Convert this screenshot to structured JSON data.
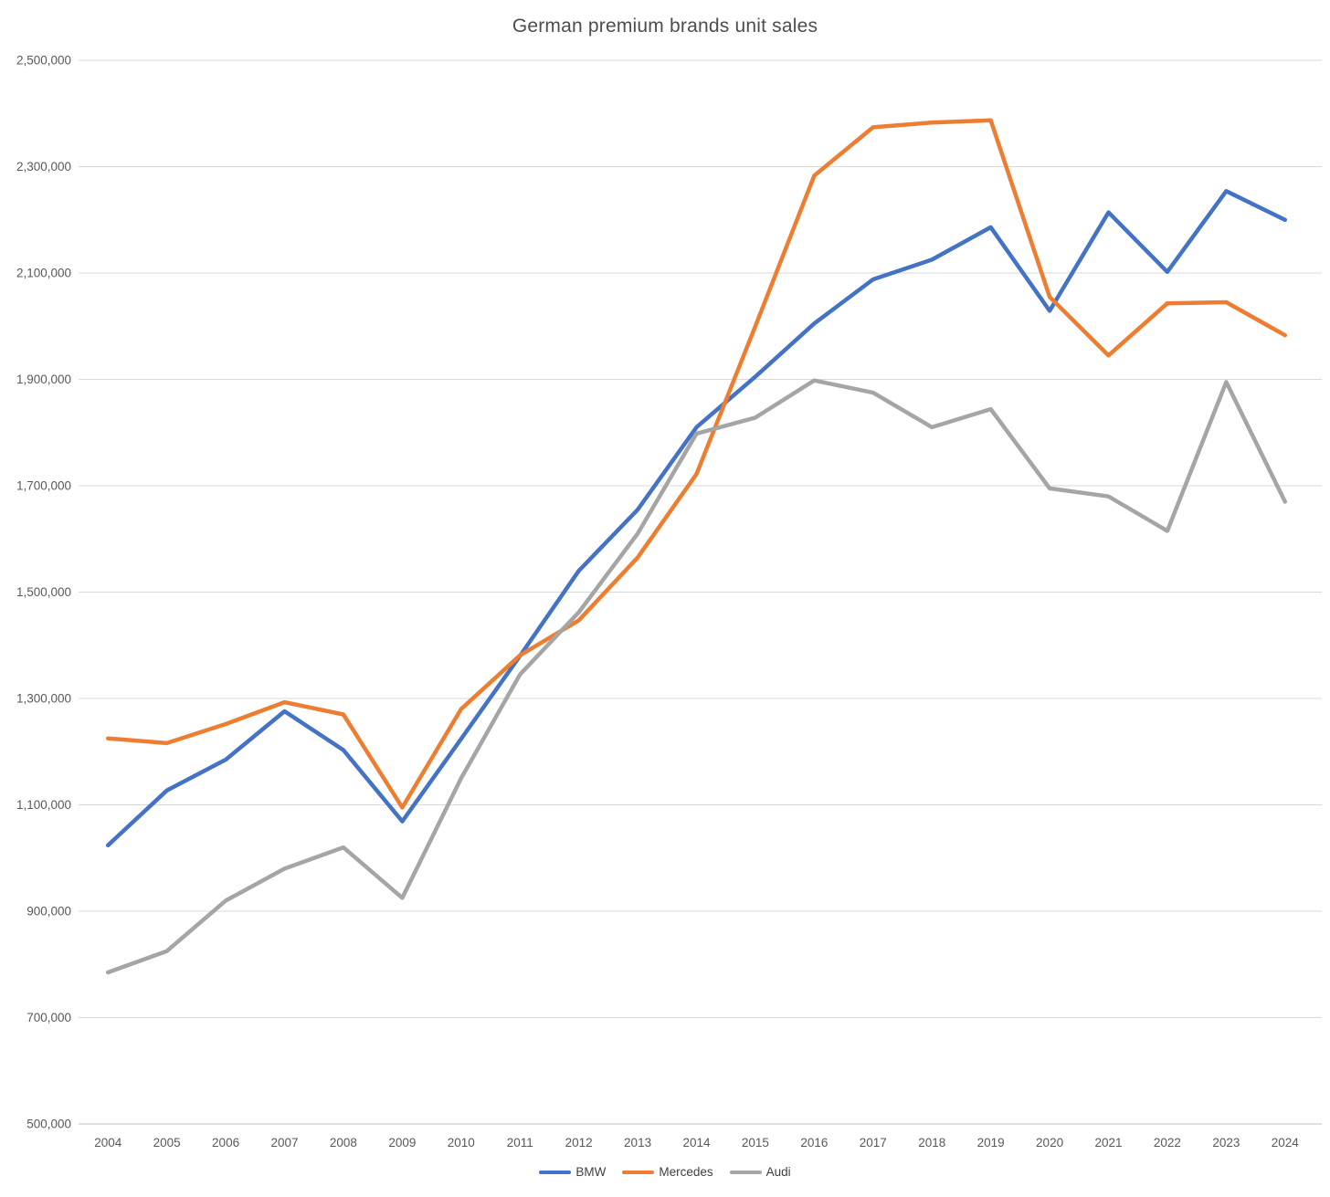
{
  "chart_data": {
    "type": "line",
    "title": "German premium brands unit sales",
    "categories": [
      "2004",
      "2005",
      "2006",
      "2007",
      "2008",
      "2009",
      "2010",
      "2011",
      "2012",
      "2013",
      "2014",
      "2015",
      "2016",
      "2017",
      "2018",
      "2019",
      "2020",
      "2021",
      "2022",
      "2023",
      "2024"
    ],
    "series": [
      {
        "name": "BMW",
        "color": "#4472C4",
        "values": [
          1024000,
          1127000,
          1185000,
          1276000,
          1203000,
          1069000,
          1224000,
          1380000,
          1540000,
          1655000,
          1810000,
          1905000,
          2005000,
          2088000,
          2125000,
          2186000,
          2029000,
          2214000,
          2102000,
          2254000,
          2200000
        ]
      },
      {
        "name": "Mercedes",
        "color": "#ED7D31",
        "values": [
          1225000,
          1216000,
          1252000,
          1293000,
          1270000,
          1095000,
          1280000,
          1381000,
          1447000,
          1565000,
          1722000,
          2000000,
          2283000,
          2374000,
          2383000,
          2387000,
          2055000,
          1945000,
          2043000,
          2045000,
          1983000
        ]
      },
      {
        "name": "Audi",
        "color": "#A5A5A5",
        "values": [
          785000,
          825000,
          920000,
          980000,
          1020000,
          925000,
          1150000,
          1345000,
          1462000,
          1610000,
          1798000,
          1828000,
          1898000,
          1875000,
          1810000,
          1844000,
          1695000,
          1680000,
          1615000,
          1895000,
          1670000
        ]
      }
    ],
    "y_axis": {
      "min": 500000,
      "max": 2500000,
      "step": 200000,
      "tick_labels": [
        "500,000",
        "700,000",
        "900,000",
        "1,100,000",
        "1,300,000",
        "1,500,000",
        "1,700,000",
        "1,900,000",
        "2,100,000",
        "2,300,000",
        "2,500,000"
      ]
    },
    "x_axis_label_row": "2004–2024, one label per year",
    "legend": {
      "position": "bottom",
      "entries": [
        "BMW",
        "Mercedes",
        "Audi"
      ]
    },
    "grid": true,
    "colors": {
      "gridline": "#D9D9D9",
      "axis_line": "#BFBFBF",
      "axis_text": "#595959",
      "title_text": "#4D4D4D"
    }
  }
}
